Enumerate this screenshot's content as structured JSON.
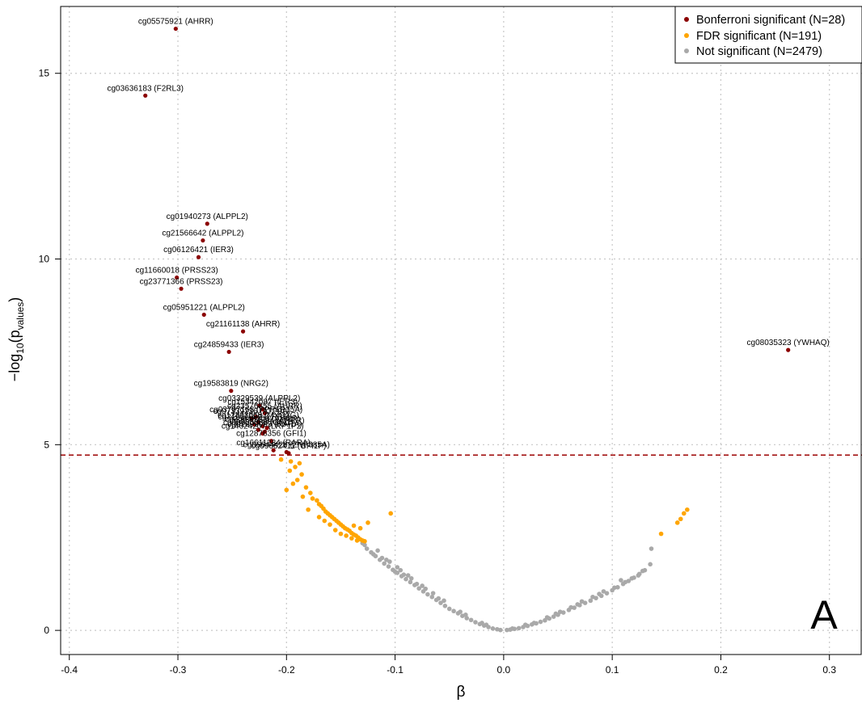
{
  "chart_data": {
    "type": "scatter",
    "panel_label": "A",
    "xlabel": "β",
    "ylabel": {
      "base": "−log",
      "sub1": "10",
      "open": "(p",
      "sub2": "values",
      "close": ")"
    },
    "xlim": [
      -0.408,
      0.33
    ],
    "ylim": [
      -0.65,
      16.8
    ],
    "x_ticks": [
      -0.4,
      -0.3,
      -0.2,
      -0.1,
      0.0,
      0.1,
      0.2,
      0.3
    ],
    "x_tick_labels": [
      "-0.4",
      "-0.3",
      "-0.2",
      "-0.1",
      "0.0",
      "0.1",
      "0.2",
      "0.3"
    ],
    "y_ticks": [
      0,
      5,
      10,
      15
    ],
    "y_tick_labels": [
      "0",
      "5",
      "10",
      "15"
    ],
    "grid": true,
    "threshold_line": {
      "y": 4.72,
      "color": "#a31515",
      "style": "dashed"
    },
    "legend": {
      "position": "top-right",
      "entries": [
        {
          "label": "Bonferroni significant (N=28)",
          "color": "#8b0000"
        },
        {
          "label": "FDR significant (N=191)",
          "color": "#ffa500"
        },
        {
          "label": "Not significant (N=2479)",
          "color": "#a9a9a9"
        }
      ]
    },
    "series": [
      {
        "name": "Bonferroni significant (N=28)",
        "color": "#8b0000",
        "points": [
          {
            "x": -0.302,
            "y": 16.2,
            "label": "cg05575921 (AHRR)"
          },
          {
            "x": -0.33,
            "y": 14.4,
            "label": "cg03636183 (F2RL3)"
          },
          {
            "x": -0.273,
            "y": 10.95,
            "label": "cg01940273 (ALPPL2)"
          },
          {
            "x": -0.277,
            "y": 10.5,
            "label": "cg21566642 (ALPPL2)"
          },
          {
            "x": -0.281,
            "y": 10.05,
            "label": "cg06126421 (IER3)"
          },
          {
            "x": -0.301,
            "y": 9.5,
            "label": "cg11660018 (PRSS23)"
          },
          {
            "x": -0.297,
            "y": 9.2,
            "label": "cg23771366 (PRSS23)"
          },
          {
            "x": -0.276,
            "y": 8.5,
            "label": "cg05951221 (ALPPL2)"
          },
          {
            "x": -0.24,
            "y": 8.05,
            "label": "cg21161138 (AHRR)"
          },
          {
            "x": -0.253,
            "y": 7.5,
            "label": "cg24859433 (IER3)"
          },
          {
            "x": 0.262,
            "y": 7.55,
            "label": "cg08035323 (YWHAQ)"
          },
          {
            "x": -0.251,
            "y": 6.45,
            "label": "cg19583819 (NRG2)"
          },
          {
            "x": -0.225,
            "y": 6.05,
            "label": "cg03329539 (ALPPL2)"
          },
          {
            "x": -0.222,
            "y": 5.95,
            "label": "cg15342087 (IER3)"
          },
          {
            "x": -0.22,
            "y": 5.85,
            "label": "cg23576855 (AHRR)"
          },
          {
            "x": -0.228,
            "y": 5.75,
            "label": "cg03707168 (PPP1R15A)"
          },
          {
            "x": -0.232,
            "y": 5.7,
            "label": "cg07339236 (ATP9A)"
          },
          {
            "x": -0.226,
            "y": 5.6,
            "label": "cg12803068 (MYO1G)"
          },
          {
            "x": -0.23,
            "y": 5.55,
            "label": "cg21611682 (LRP5)"
          },
          {
            "x": -0.222,
            "y": 5.5,
            "label": "cg25648203 (AHRR)"
          },
          {
            "x": -0.218,
            "y": 5.45,
            "label": "cg26703534 (AHRR)"
          },
          {
            "x": -0.226,
            "y": 5.4,
            "label": "cg09935388 (GFI1)"
          },
          {
            "x": -0.22,
            "y": 5.35,
            "label": "cg01899089 (RARA)"
          },
          {
            "x": -0.222,
            "y": 5.3,
            "label": "cg14624207 (LRP1P2)"
          },
          {
            "x": -0.214,
            "y": 5.1,
            "label": "cg12876356 (GFI1)"
          },
          {
            "x": -0.212,
            "y": 4.85,
            "label": "cg16611234 (RARA)"
          },
          {
            "x": -0.2,
            "y": 4.8,
            "label": "cg06644428 (ZNF385A)"
          },
          {
            "x": -0.198,
            "y": 4.77,
            "label": "cg09662411 (GFI1P)"
          }
        ]
      },
      {
        "name": "FDR significant (N=191)",
        "color": "#ffa500",
        "points": [
          {
            "x": -0.205,
            "y": 4.6
          },
          {
            "x": -0.196,
            "y": 4.55
          },
          {
            "x": -0.188,
            "y": 4.5
          },
          {
            "x": -0.197,
            "y": 4.3
          },
          {
            "x": -0.192,
            "y": 4.4
          },
          {
            "x": -0.186,
            "y": 4.2
          },
          {
            "x": -0.19,
            "y": 4.05
          },
          {
            "x": -0.194,
            "y": 3.95
          },
          {
            "x": -0.182,
            "y": 3.85
          },
          {
            "x": -0.2,
            "y": 3.78
          },
          {
            "x": -0.178,
            "y": 3.7
          },
          {
            "x": -0.185,
            "y": 3.6
          },
          {
            "x": -0.176,
            "y": 3.55
          },
          {
            "x": -0.172,
            "y": 3.5
          },
          {
            "x": -0.17,
            "y": 3.4
          },
          {
            "x": -0.168,
            "y": 3.35
          },
          {
            "x": -0.166,
            "y": 3.28
          },
          {
            "x": -0.164,
            "y": 3.2
          },
          {
            "x": -0.162,
            "y": 3.15
          },
          {
            "x": -0.16,
            "y": 3.1
          },
          {
            "x": -0.158,
            "y": 3.05
          },
          {
            "x": -0.156,
            "y": 3.0
          },
          {
            "x": -0.154,
            "y": 2.95
          },
          {
            "x": -0.152,
            "y": 2.9
          },
          {
            "x": -0.15,
            "y": 2.85
          },
          {
            "x": -0.148,
            "y": 2.8
          },
          {
            "x": -0.146,
            "y": 2.75
          },
          {
            "x": -0.144,
            "y": 2.72
          },
          {
            "x": -0.142,
            "y": 2.68
          },
          {
            "x": -0.14,
            "y": 2.62
          },
          {
            "x": -0.138,
            "y": 2.58
          },
          {
            "x": -0.136,
            "y": 2.55
          },
          {
            "x": -0.134,
            "y": 2.5
          },
          {
            "x": -0.132,
            "y": 2.45
          },
          {
            "x": -0.13,
            "y": 2.42
          },
          {
            "x": -0.128,
            "y": 2.4
          },
          {
            "x": -0.155,
            "y": 2.7
          },
          {
            "x": -0.15,
            "y": 2.6
          },
          {
            "x": -0.145,
            "y": 2.55
          },
          {
            "x": -0.14,
            "y": 2.48
          },
          {
            "x": -0.135,
            "y": 2.42
          },
          {
            "x": -0.16,
            "y": 2.85
          },
          {
            "x": -0.125,
            "y": 2.9
          },
          {
            "x": -0.132,
            "y": 2.75
          },
          {
            "x": -0.138,
            "y": 2.82
          },
          {
            "x": -0.17,
            "y": 3.05
          },
          {
            "x": -0.165,
            "y": 2.95
          },
          {
            "x": -0.18,
            "y": 3.25
          },
          {
            "x": -0.104,
            "y": 3.15
          },
          {
            "x": 0.145,
            "y": 2.6
          },
          {
            "x": 0.16,
            "y": 2.9
          },
          {
            "x": 0.163,
            "y": 3.0
          },
          {
            "x": 0.166,
            "y": 3.15
          },
          {
            "x": 0.169,
            "y": 3.25
          }
        ]
      },
      {
        "name": "Not significant (N=2479)",
        "color": "#a9a9a9",
        "points": [
          {
            "x": -0.13,
            "y": 2.35
          },
          {
            "x": -0.126,
            "y": 2.2
          },
          {
            "x": -0.122,
            "y": 2.1
          },
          {
            "x": -0.118,
            "y": 2.0
          },
          {
            "x": -0.114,
            "y": 1.9
          },
          {
            "x": -0.11,
            "y": 1.8
          },
          {
            "x": -0.106,
            "y": 1.72
          },
          {
            "x": -0.102,
            "y": 1.63
          },
          {
            "x": -0.098,
            "y": 1.55
          },
          {
            "x": -0.094,
            "y": 1.46
          },
          {
            "x": -0.09,
            "y": 1.38
          },
          {
            "x": -0.086,
            "y": 1.3
          },
          {
            "x": -0.082,
            "y": 1.22
          },
          {
            "x": -0.078,
            "y": 1.13
          },
          {
            "x": -0.074,
            "y": 1.05
          },
          {
            "x": -0.07,
            "y": 0.97
          },
          {
            "x": -0.066,
            "y": 0.9
          },
          {
            "x": -0.062,
            "y": 0.82
          },
          {
            "x": -0.058,
            "y": 0.74
          },
          {
            "x": -0.054,
            "y": 0.66
          },
          {
            "x": -0.05,
            "y": 0.58
          },
          {
            "x": -0.046,
            "y": 0.52
          },
          {
            "x": -0.042,
            "y": 0.46
          },
          {
            "x": -0.038,
            "y": 0.39
          },
          {
            "x": -0.034,
            "y": 0.33
          },
          {
            "x": -0.03,
            "y": 0.28
          },
          {
            "x": -0.026,
            "y": 0.22
          },
          {
            "x": -0.022,
            "y": 0.17
          },
          {
            "x": -0.018,
            "y": 0.13
          },
          {
            "x": -0.014,
            "y": 0.09
          },
          {
            "x": -0.01,
            "y": 0.05
          },
          {
            "x": -0.006,
            "y": 0.03
          },
          {
            "x": -0.003,
            "y": 0.01
          },
          {
            "x": 0.003,
            "y": 0.01
          },
          {
            "x": 0.006,
            "y": 0.02
          },
          {
            "x": 0.01,
            "y": 0.04
          },
          {
            "x": 0.014,
            "y": 0.06
          },
          {
            "x": 0.018,
            "y": 0.09
          },
          {
            "x": 0.022,
            "y": 0.12
          },
          {
            "x": 0.026,
            "y": 0.16
          },
          {
            "x": 0.03,
            "y": 0.19
          },
          {
            "x": 0.034,
            "y": 0.23
          },
          {
            "x": 0.038,
            "y": 0.27
          },
          {
            "x": 0.042,
            "y": 0.32
          },
          {
            "x": 0.046,
            "y": 0.37
          },
          {
            "x": 0.05,
            "y": 0.42
          },
          {
            "x": 0.055,
            "y": 0.48
          },
          {
            "x": 0.06,
            "y": 0.55
          },
          {
            "x": 0.065,
            "y": 0.61
          },
          {
            "x": 0.07,
            "y": 0.68
          },
          {
            "x": 0.075,
            "y": 0.74
          },
          {
            "x": 0.08,
            "y": 0.8
          },
          {
            "x": 0.085,
            "y": 0.87
          },
          {
            "x": 0.09,
            "y": 0.93
          },
          {
            "x": 0.095,
            "y": 1.0
          },
          {
            "x": 0.1,
            "y": 1.08
          },
          {
            "x": 0.105,
            "y": 1.16
          },
          {
            "x": 0.11,
            "y": 1.25
          },
          {
            "x": 0.115,
            "y": 1.33
          },
          {
            "x": 0.12,
            "y": 1.42
          },
          {
            "x": 0.125,
            "y": 1.52
          },
          {
            "x": 0.13,
            "y": 1.62
          },
          {
            "x": 0.135,
            "y": 1.78
          },
          {
            "x": 0.136,
            "y": 2.2
          },
          {
            "x": -0.098,
            "y": 1.7
          },
          {
            "x": -0.105,
            "y": 1.85
          },
          {
            "x": -0.112,
            "y": 1.95
          },
          {
            "x": -0.12,
            "y": 2.05
          },
          {
            "x": -0.085,
            "y": 1.4
          },
          {
            "x": -0.075,
            "y": 1.2
          },
          {
            "x": -0.065,
            "y": 1.0
          },
          {
            "x": -0.092,
            "y": 1.5
          },
          {
            "x": -0.128,
            "y": 2.3
          },
          {
            "x": -0.116,
            "y": 2.15
          },
          {
            "x": -0.1,
            "y": 1.58
          },
          {
            "x": -0.08,
            "y": 1.25
          },
          {
            "x": -0.06,
            "y": 0.86
          },
          {
            "x": -0.04,
            "y": 0.5
          },
          {
            "x": -0.02,
            "y": 0.2
          },
          {
            "x": 0.02,
            "y": 0.15
          },
          {
            "x": 0.04,
            "y": 0.35
          },
          {
            "x": 0.062,
            "y": 0.62
          },
          {
            "x": 0.082,
            "y": 0.9
          },
          {
            "x": 0.102,
            "y": 1.15
          },
          {
            "x": 0.118,
            "y": 1.4
          },
          {
            "x": 0.128,
            "y": 1.6
          },
          {
            "x": 0.108,
            "y": 1.35
          },
          {
            "x": 0.092,
            "y": 1.05
          },
          {
            "x": 0.072,
            "y": 0.78
          },
          {
            "x": 0.052,
            "y": 0.5
          },
          {
            "x": -0.108,
            "y": 1.9
          },
          {
            "x": -0.095,
            "y": 1.62
          },
          {
            "x": -0.088,
            "y": 1.48
          },
          {
            "x": -0.072,
            "y": 1.12
          },
          {
            "x": -0.055,
            "y": 0.8
          },
          {
            "x": -0.035,
            "y": 0.42
          },
          {
            "x": -0.016,
            "y": 0.15
          },
          {
            "x": 0.008,
            "y": 0.05
          },
          {
            "x": 0.028,
            "y": 0.2
          },
          {
            "x": 0.048,
            "y": 0.45
          },
          {
            "x": 0.068,
            "y": 0.7
          },
          {
            "x": 0.088,
            "y": 0.98
          },
          {
            "x": 0.112,
            "y": 1.3
          },
          {
            "x": 0.124,
            "y": 1.48
          }
        ]
      }
    ]
  }
}
